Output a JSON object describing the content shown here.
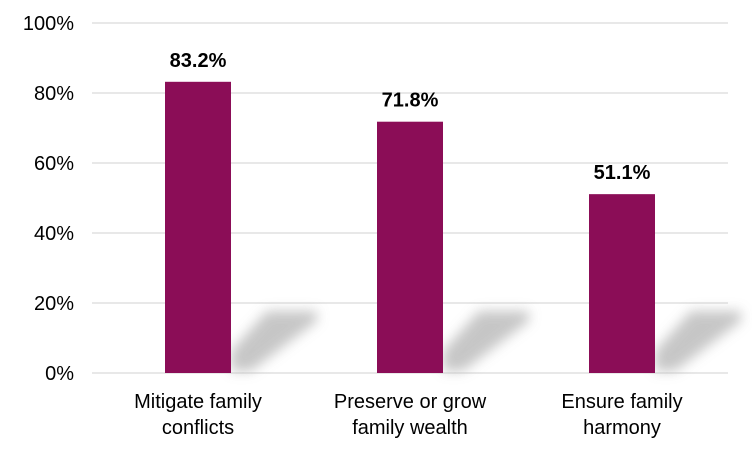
{
  "chart_data": {
    "type": "bar",
    "categories": [
      [
        "Mitigate family",
        "conflicts"
      ],
      [
        "Preserve or grow",
        "family wealth"
      ],
      [
        "Ensure family",
        "harmony"
      ]
    ],
    "values": [
      83.2,
      71.8,
      51.1
    ],
    "data_labels": [
      "83.2%",
      "71.8%",
      "51.1%"
    ],
    "title": "",
    "xlabel": "",
    "ylabel": "",
    "ylim": [
      0,
      100
    ],
    "yticks": [
      0,
      20,
      40,
      60,
      80,
      100
    ],
    "ytick_labels": [
      "0%",
      "20%",
      "40%",
      "60%",
      "80%",
      "100%"
    ],
    "grid": true,
    "legend": "none",
    "colors": {
      "bar": "#8b0d57",
      "shadow": "#bdbdbd",
      "grid": "#d0d0d0"
    }
  }
}
